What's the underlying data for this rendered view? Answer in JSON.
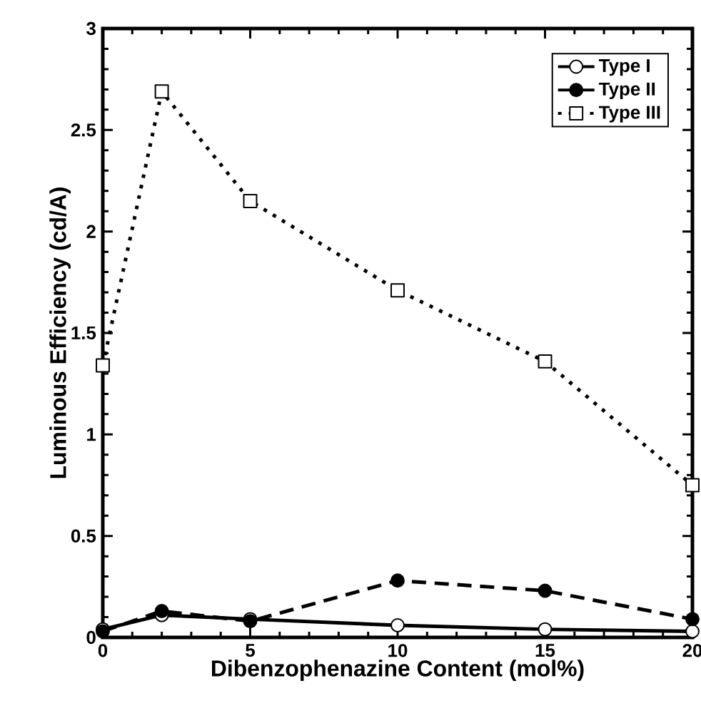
{
  "chart_data": {
    "type": "line",
    "xlabel": "Dibenzophenazine Content (mol%)",
    "ylabel": "Luminous Efficiency (cd/A)",
    "x": [
      0,
      2,
      5,
      10,
      15,
      20
    ],
    "series": [
      {
        "name": "Type I",
        "color": "#000000",
        "marker": "circle",
        "line_style": "solid",
        "values": [
          0.04,
          0.11,
          0.09,
          0.06,
          0.04,
          0.03
        ]
      },
      {
        "name": "Type II",
        "color": "#000000",
        "marker": "circle",
        "line_style": "dashed",
        "values": [
          0.03,
          0.13,
          0.08,
          0.28,
          0.23,
          0.09
        ]
      },
      {
        "name": "Type III",
        "color": "#000000",
        "marker": "square",
        "line_style": "dotted",
        "values": [
          1.34,
          2.69,
          2.15,
          1.71,
          1.36,
          0.75
        ]
      }
    ],
    "xlim": [
      0,
      20
    ],
    "ylim": [
      0,
      3
    ],
    "xticks": [
      0,
      5,
      10,
      15,
      20
    ],
    "yticks": [
      0,
      0.5,
      1,
      1.5,
      2,
      2.5,
      3
    ],
    "legend": "top right",
    "grid": false
  }
}
